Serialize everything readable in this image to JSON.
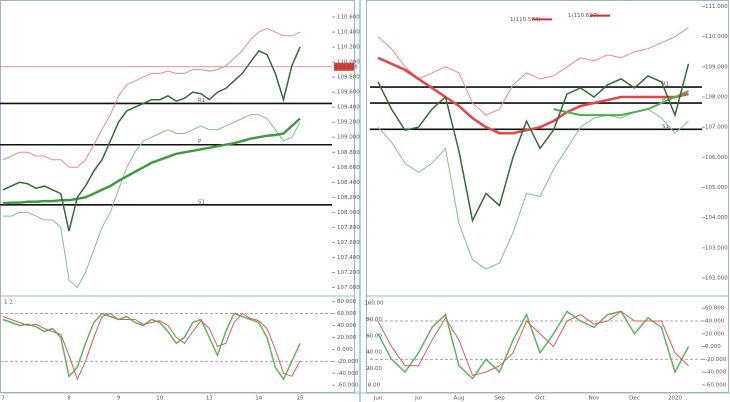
{
  "chart_data": [
    {
      "type": "line",
      "panel": "left-price",
      "categories": [
        "7",
        null,
        null,
        null,
        null,
        null,
        null,
        null,
        "8",
        null,
        null,
        null,
        null,
        null,
        "9",
        null,
        null,
        null,
        null,
        "10",
        null,
        null,
        null,
        null,
        null,
        "13",
        null,
        null,
        null,
        null,
        null,
        "14",
        null,
        null,
        null,
        null,
        "15"
      ],
      "series": [
        {
          "name": "Upper band",
          "color": "#f08a8a",
          "width": 1,
          "values": [
            108.7,
            108.75,
            108.8,
            108.8,
            108.75,
            108.75,
            108.7,
            108.7,
            108.6,
            108.6,
            108.7,
            108.9,
            109.1,
            109.3,
            109.55,
            109.7,
            109.75,
            109.8,
            109.85,
            109.85,
            109.88,
            109.85,
            109.85,
            109.9,
            109.9,
            109.88,
            109.9,
            109.95,
            110.05,
            110.15,
            110.3,
            110.4,
            110.45,
            110.4,
            110.35,
            110.35,
            110.4
          ]
        },
        {
          "name": "Lower band",
          "color": "#7cc87c",
          "width": 1,
          "values": [
            107.95,
            107.95,
            108.0,
            108.0,
            107.95,
            107.9,
            107.9,
            107.8,
            107.1,
            107.0,
            107.2,
            107.5,
            107.8,
            108.0,
            108.3,
            108.6,
            108.8,
            108.95,
            109.0,
            109.05,
            109.1,
            109.05,
            109.05,
            109.1,
            109.15,
            109.1,
            109.1,
            109.15,
            109.2,
            109.25,
            109.3,
            109.3,
            109.25,
            109.1,
            108.95,
            109.0,
            109.2
          ]
        },
        {
          "name": "Moving average",
          "color": "#3f9a3f",
          "width": 2.5,
          "values": [
            108.12,
            108.13,
            108.13,
            108.14,
            108.14,
            108.15,
            108.15,
            108.16,
            108.16,
            108.18,
            108.2,
            108.25,
            108.3,
            108.35,
            108.42,
            108.48,
            108.54,
            108.6,
            108.66,
            108.7,
            108.74,
            108.78,
            108.8,
            108.82,
            108.84,
            108.86,
            108.88,
            108.9,
            108.92,
            108.95,
            108.98,
            109.0,
            109.02,
            109.03,
            109.05,
            109.15,
            109.25
          ]
        },
        {
          "name": "Price",
          "color": "#2f6f2f",
          "width": 1.5,
          "values": [
            108.3,
            108.35,
            108.4,
            108.38,
            108.32,
            108.35,
            108.3,
            108.25,
            107.75,
            108.2,
            108.35,
            108.55,
            108.7,
            108.95,
            109.2,
            109.35,
            109.4,
            109.45,
            109.5,
            109.5,
            109.55,
            109.48,
            109.52,
            109.6,
            109.58,
            109.5,
            109.6,
            109.65,
            109.75,
            109.85,
            110.0,
            110.15,
            110.1,
            109.85,
            109.5,
            109.95,
            110.2
          ]
        }
      ],
      "hlines": [
        {
          "value": 109.45,
          "label": "R1"
        },
        {
          "value": 108.9,
          "label": "P"
        },
        {
          "value": 108.1,
          "label": "S1"
        }
      ],
      "price_tag": 109.938,
      "ylim": [
        106.94,
        110.8
      ],
      "yticks": [
        {
          "value": 107,
          "label": "107.000"
        },
        {
          "value": 107.2,
          "label": "107.200"
        },
        {
          "value": 107.4,
          "label": "107.400"
        },
        {
          "value": 107.6,
          "label": "107.600"
        },
        {
          "value": 107.8,
          "label": "107.800"
        },
        {
          "value": 108,
          "label": "108.000"
        },
        {
          "value": 108.2,
          "label": "108.200"
        },
        {
          "value": 108.4,
          "label": "108.400"
        },
        {
          "value": 108.6,
          "label": "108.600"
        },
        {
          "value": 108.8,
          "label": "108.800"
        },
        {
          "value": 109,
          "label": "109.000"
        },
        {
          "value": 109.2,
          "label": "109.200"
        },
        {
          "value": 109.4,
          "label": "109.400"
        },
        {
          "value": 109.6,
          "label": "109.600"
        },
        {
          "value": 109.8,
          "label": "109.800"
        },
        {
          "value": 110,
          "label": "110.000"
        },
        {
          "value": 110.2,
          "label": "110.200"
        },
        {
          "value": 110.4,
          "label": "110.400"
        },
        {
          "value": 110.6,
          "label": "110.600"
        }
      ]
    },
    {
      "type": "line",
      "panel": "left-osc",
      "title": "1 2",
      "series": [
        {
          "name": "Fast",
          "color": "#5cb85c",
          "width": 1.5,
          "values": [
            50,
            45,
            40,
            42,
            38,
            30,
            35,
            20,
            -45,
            -30,
            10,
            45,
            60,
            55,
            50,
            55,
            45,
            40,
            50,
            45,
            30,
            10,
            20,
            45,
            50,
            20,
            -10,
            30,
            60,
            55,
            50,
            45,
            20,
            -30,
            -50,
            -20,
            10
          ]
        },
        {
          "name": "Slow",
          "color": "#e05a5a",
          "width": 1,
          "values": [
            55,
            50,
            45,
            40,
            42,
            35,
            30,
            25,
            -10,
            -50,
            -20,
            20,
            55,
            60,
            50,
            50,
            50,
            42,
            45,
            48,
            40,
            20,
            10,
            30,
            48,
            35,
            5,
            10,
            45,
            60,
            52,
            48,
            35,
            0,
            -40,
            -45,
            -20
          ]
        }
      ],
      "ylim": [
        -68,
        86
      ],
      "yticks": [
        {
          "value": -60,
          "label": "-60.000"
        },
        {
          "value": -40,
          "label": "-40.000"
        },
        {
          "value": -20,
          "label": "-20.000"
        },
        {
          "value": 0,
          "label": "0.000"
        },
        {
          "value": 20,
          "label": "20.000"
        },
        {
          "value": 40,
          "label": "40.000"
        },
        {
          "value": 60,
          "label": "60.000"
        },
        {
          "value": 80,
          "label": "80.000"
        }
      ]
    },
    {
      "type": "line",
      "panel": "right-price",
      "categories": [
        "Jun",
        null,
        null,
        "Jul",
        null,
        null,
        "Aug",
        null,
        null,
        "Sep",
        null,
        null,
        "Oct",
        null,
        null,
        null,
        "Nov",
        null,
        null,
        "Dec",
        null,
        null,
        "2020",
        null
      ],
      "series": [
        {
          "name": "Upper band",
          "color": "#f08a8a",
          "width": 1,
          "values": [
            110.0,
            109.6,
            109.0,
            108.6,
            108.8,
            109.0,
            108.8,
            107.8,
            107.4,
            107.6,
            108.4,
            108.8,
            108.6,
            108.7,
            109.0,
            109.3,
            109.2,
            109.4,
            109.3,
            109.5,
            109.6,
            109.8,
            110.0,
            110.3
          ]
        },
        {
          "name": "Lower band",
          "color": "#7cc87c",
          "width": 1,
          "values": [
            107.0,
            106.5,
            105.8,
            105.5,
            105.8,
            106.3,
            103.8,
            102.6,
            102.3,
            102.5,
            103.5,
            104.8,
            104.7,
            105.6,
            106.3,
            107.0,
            107.3,
            107.4,
            107.3,
            107.5,
            107.6,
            107.3,
            106.8,
            107.2
          ]
        },
        {
          "name": "Red average",
          "color": "#e04848",
          "width": 2.5,
          "values": [
            109.3,
            109.1,
            108.9,
            108.6,
            108.3,
            108.0,
            107.7,
            107.3,
            107.0,
            106.8,
            106.8,
            106.9,
            107.0,
            107.2,
            107.5,
            107.7,
            107.8,
            107.9,
            108.0,
            108.0,
            108.0,
            108.0,
            108.0,
            108.1
          ]
        },
        {
          "name": "Green average",
          "color": "#4caf50",
          "width": 2,
          "values": [
            null,
            null,
            null,
            null,
            null,
            null,
            null,
            null,
            null,
            null,
            null,
            null,
            null,
            107.6,
            107.5,
            107.4,
            107.4,
            107.4,
            107.4,
            107.5,
            107.6,
            107.8,
            108.0,
            108.2
          ]
        },
        {
          "name": "Price",
          "color": "#2f6f2f",
          "width": 1.5,
          "values": [
            108.5,
            107.6,
            106.9,
            107.0,
            107.6,
            108.0,
            106.2,
            103.9,
            104.8,
            104.4,
            106.0,
            107.2,
            106.3,
            106.9,
            108.1,
            108.3,
            108.0,
            108.4,
            108.6,
            108.3,
            108.7,
            108.5,
            107.4,
            109.1
          ]
        }
      ],
      "hlines": [
        {
          "value": 108.33,
          "label": "R1"
        },
        {
          "value": 107.8,
          "label": "P"
        },
        {
          "value": 106.93,
          "label": "S1"
        }
      ],
      "annotations": [
        {
          "value": 110.574,
          "label": "1(110.574)"
        },
        {
          "value": 110.697,
          "label": "1(110.697)"
        }
      ],
      "ylim": [
        101.6,
        111.15
      ],
      "yticks": [
        {
          "value": 102,
          "label": "102.000"
        },
        {
          "value": 103,
          "label": "103.000"
        },
        {
          "value": 104,
          "label": "104.000"
        },
        {
          "value": 105,
          "label": "105.000"
        },
        {
          "value": 106,
          "label": "106.000"
        },
        {
          "value": 107,
          "label": "107.000"
        },
        {
          "value": 108,
          "label": "108.000"
        },
        {
          "value": 109,
          "label": "109.000"
        },
        {
          "value": 110,
          "label": "110.000"
        },
        {
          "value": 111,
          "label": "111.000"
        }
      ]
    },
    {
      "type": "line",
      "panel": "right-osc",
      "series": [
        {
          "name": "Fast",
          "color": "#5cb85c",
          "width": 1.5,
          "values": [
            20,
            -20,
            -40,
            -10,
            30,
            50,
            -30,
            -50,
            -20,
            -40,
            10,
            50,
            -10,
            20,
            55,
            40,
            30,
            50,
            55,
            20,
            45,
            30,
            -40,
            0
          ]
        },
        {
          "name": "Slow",
          "color": "#e05a5a",
          "width": 1,
          "values": [
            40,
            0,
            -30,
            -30,
            10,
            45,
            10,
            -45,
            -40,
            -30,
            -10,
            40,
            20,
            0,
            40,
            50,
            35,
            40,
            55,
            40,
            40,
            40,
            -10,
            -30
          ]
        }
      ],
      "ylim": [
        -68,
        76
      ],
      "yticks": [
        {
          "value": -60,
          "label": "-60.000"
        },
        {
          "value": -40,
          "label": "-40.000"
        },
        {
          "value": -20,
          "label": "-20.000"
        },
        {
          "value": 0,
          "label": "0.000"
        },
        {
          "value": 20,
          "label": "20.000"
        },
        {
          "value": 40,
          "label": "40.000"
        },
        {
          "value": 60,
          "label": "60.000"
        }
      ],
      "y2lim": [
        -6,
        106
      ],
      "y2ticks": [
        {
          "value": 0,
          "label": "0.00"
        },
        {
          "value": 20,
          "label": "20.00"
        },
        {
          "value": 40,
          "label": "40.00"
        },
        {
          "value": 60,
          "label": "60.00"
        },
        {
          "value": 80,
          "label": "80.00"
        },
        {
          "value": 100,
          "label": "100.00"
        }
      ]
    }
  ]
}
